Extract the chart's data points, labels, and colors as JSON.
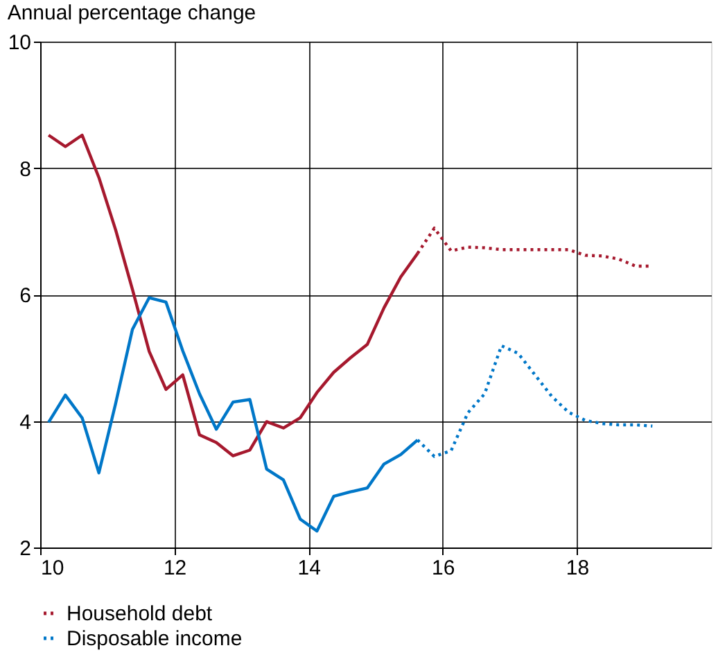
{
  "chart_data": {
    "type": "line",
    "title": "Annual percentage change",
    "xlim": [
      10,
      20
    ],
    "xticks": [
      10,
      12,
      14,
      16,
      18
    ],
    "ylim": [
      2,
      10
    ],
    "yticks": [
      2,
      4,
      6,
      8,
      10
    ],
    "grid": true,
    "legend": "bottom",
    "series": [
      {
        "color": "#a6192e",
        "line_style": "solid",
        "x": [
          10.125,
          10.375,
          10.625,
          10.875,
          11.125,
          11.375,
          11.625,
          11.875,
          12.125,
          12.375,
          12.625,
          12.875,
          13.125,
          13.375,
          13.625,
          13.875,
          14.125,
          14.375,
          14.625,
          14.875,
          15.125,
          15.375,
          15.625
        ],
        "values": [
          8.52,
          8.34,
          8.52,
          7.85,
          7.02,
          6.08,
          5.1,
          4.5,
          4.73,
          3.78,
          3.66,
          3.45,
          3.54,
          3.99,
          3.89,
          4.05,
          4.45,
          4.77,
          5.0,
          5.21,
          5.79,
          6.28,
          6.65
        ]
      },
      {
        "name": "Household debt",
        "color": "#a6192e",
        "line_style": "dotted",
        "x": [
          15.625,
          15.875,
          16.125,
          16.375,
          16.625,
          16.875,
          17.125,
          17.375,
          17.625,
          17.875,
          18.125,
          18.375,
          18.625,
          18.875,
          19.125
        ],
        "values": [
          6.65,
          7.05,
          6.69,
          6.75,
          6.74,
          6.71,
          6.71,
          6.71,
          6.71,
          6.71,
          6.62,
          6.61,
          6.56,
          6.45,
          6.45
        ]
      },
      {
        "color": "#0077c8",
        "line_style": "solid",
        "x": [
          10.125,
          10.375,
          10.625,
          10.875,
          11.125,
          11.375,
          11.625,
          11.875,
          12.125,
          12.375,
          12.625,
          12.875,
          13.125,
          13.375,
          13.625,
          13.875,
          14.125,
          14.375,
          14.625,
          14.875,
          15.125,
          15.375,
          15.625
        ],
        "values": [
          3.98,
          4.41,
          4.05,
          3.18,
          4.28,
          5.45,
          5.95,
          5.88,
          5.11,
          4.43,
          3.87,
          4.3,
          4.34,
          3.24,
          3.07,
          2.45,
          2.26,
          2.81,
          2.88,
          2.94,
          3.32,
          3.47,
          3.7
        ]
      },
      {
        "name": "Disposable income",
        "color": "#0077c8",
        "line_style": "dotted",
        "x": [
          15.625,
          15.875,
          16.125,
          16.375,
          16.625,
          16.875,
          17.125,
          17.375,
          17.625,
          17.875,
          18.125,
          18.375,
          18.625,
          18.875,
          19.125
        ],
        "values": [
          3.7,
          3.44,
          3.53,
          4.13,
          4.43,
          5.19,
          5.07,
          4.73,
          4.39,
          4.14,
          4.01,
          3.96,
          3.94,
          3.94,
          3.92
        ]
      }
    ]
  }
}
